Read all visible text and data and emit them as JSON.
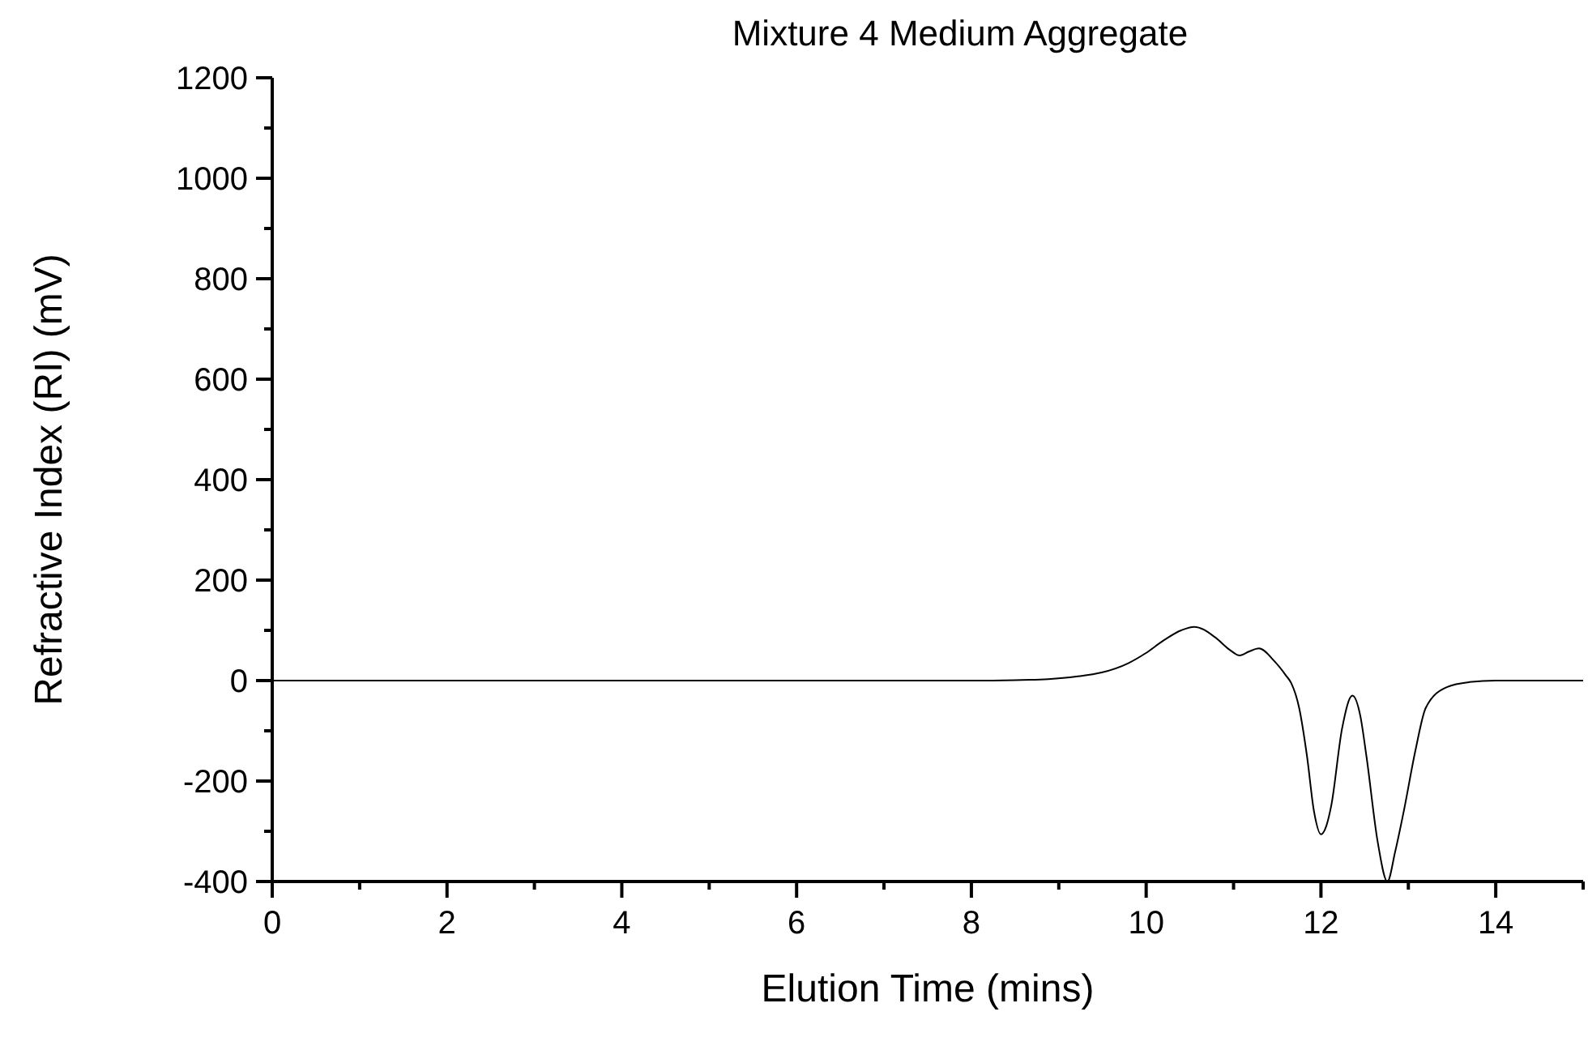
{
  "chart_data": {
    "type": "line",
    "title": "Mixture 4 Medium Aggregate",
    "xlabel": "Elution Time (mins)",
    "ylabel": "Refractive Index (RI) (mV)",
    "xlim": [
      0,
      15
    ],
    "ylim": [
      -400,
      1200
    ],
    "xticks": [
      0,
      {
        "value": 1,
        "label": null
      },
      2,
      {
        "value": 3,
        "label": null
      },
      4,
      {
        "value": 5,
        "label": null
      },
      6,
      {
        "value": 7,
        "label": null
      },
      8,
      {
        "value": 9,
        "label": null
      },
      10,
      {
        "value": 11,
        "label": null
      },
      12,
      {
        "value": 13,
        "label": null
      },
      14,
      {
        "value": 15,
        "label": null
      }
    ],
    "yticks": [
      -400,
      {
        "value": -300,
        "label": null
      },
      -200,
      {
        "value": -100,
        "label": null
      },
      0,
      {
        "value": 100,
        "label": null
      },
      200,
      {
        "value": 300,
        "label": null
      },
      400,
      {
        "value": 500,
        "label": null
      },
      600,
      {
        "value": 700,
        "label": null
      },
      800,
      {
        "value": 900,
        "label": null
      },
      1000,
      {
        "value": 1100,
        "label": null
      },
      1200
    ],
    "grid": false,
    "marker": "none",
    "line_style": "solid",
    "series": [
      {
        "color": "#000000",
        "x": [
          0,
          2,
          4,
          6,
          8,
          8.5,
          8.88,
          9.2,
          9.49,
          9.8,
          9.99,
          10.2,
          10.4,
          10.55,
          10.79,
          10.95,
          11.07,
          11.18,
          11.29,
          11.47,
          11.6,
          11.66,
          11.75,
          11.84,
          11.92,
          12.0,
          12.06,
          12.12,
          12.24,
          12.36,
          12.45,
          12.52,
          12.65,
          12.76,
          12.85,
          12.95,
          13.08,
          13.2,
          13.44,
          13.7,
          14,
          15
        ],
        "values": [
          0,
          0,
          0,
          0,
          0,
          1,
          3,
          8,
          16,
          35,
          54,
          80,
          100,
          107,
          86,
          62,
          50,
          58,
          64,
          38,
          10,
          -5,
          -54,
          -150,
          -260,
          -306,
          -290,
          -247,
          -97,
          -30,
          -70,
          -150,
          -322,
          -400,
          -340,
          -258,
          -140,
          -54,
          -13,
          -3,
          0,
          0
        ]
      }
    ]
  }
}
